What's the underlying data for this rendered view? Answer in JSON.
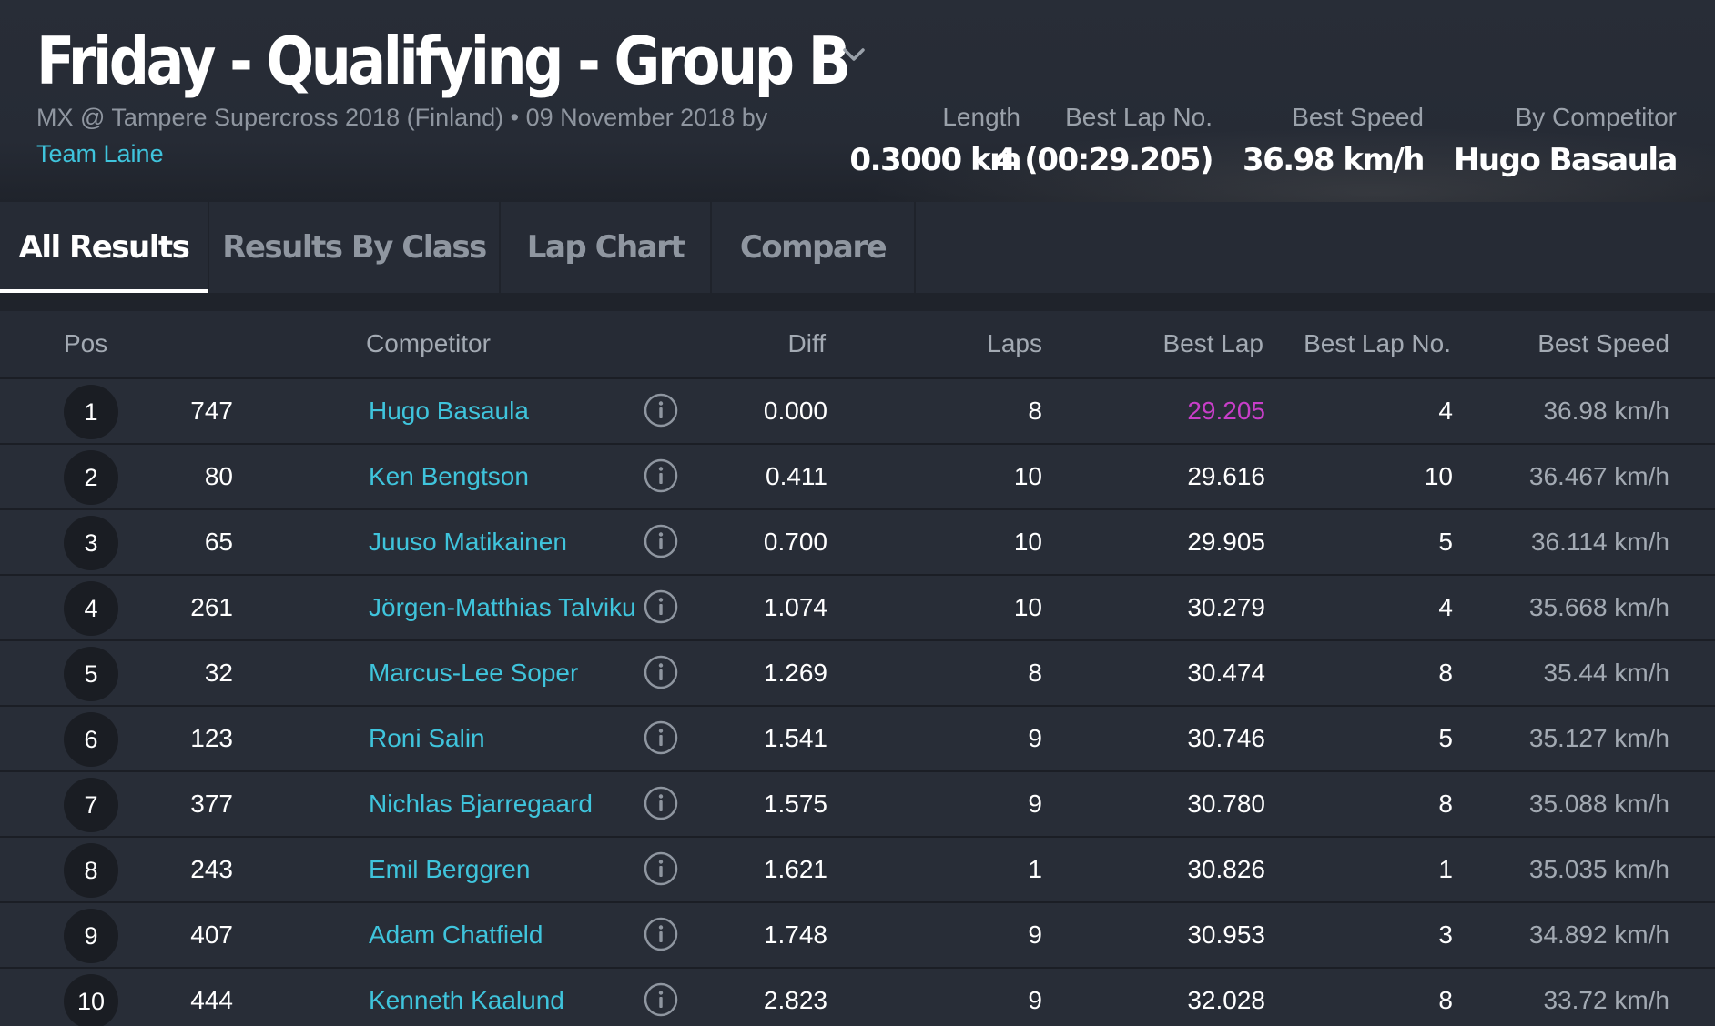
{
  "header": {
    "title": "Friday - Qualifying - Group B",
    "subtitle": "MX @ Tampere Supercross 2018 (Finland) • 09 November 2018 by",
    "organizer": "Team Laine",
    "stats": [
      {
        "label": "Length",
        "value": "0.3000 km"
      },
      {
        "label": "Best Lap No.",
        "value": "4 (00:29.205)"
      },
      {
        "label": "Best Speed",
        "value": "36.98 km/h"
      },
      {
        "label": "By Competitor",
        "value": "Hugo Basaula"
      }
    ]
  },
  "tabs": [
    {
      "label": "All Results",
      "active": true
    },
    {
      "label": "Results By Class",
      "active": false
    },
    {
      "label": "Lap Chart",
      "active": false
    },
    {
      "label": "Compare",
      "active": false
    }
  ],
  "table": {
    "columns": {
      "pos": "Pos",
      "competitor": "Competitor",
      "diff": "Diff",
      "laps": "Laps",
      "best_lap": "Best Lap",
      "best_lap_no": "Best Lap No.",
      "best_speed": "Best Speed"
    },
    "rows": [
      {
        "pos": "1",
        "number": "747",
        "name": "Hugo Basaula",
        "diff": "0.000",
        "laps": "8",
        "best_lap": "29.205",
        "best_lap_no": "4",
        "best_speed": "36.98 km/h"
      },
      {
        "pos": "2",
        "number": "80",
        "name": "Ken Bengtson",
        "diff": "0.411",
        "laps": "10",
        "best_lap": "29.616",
        "best_lap_no": "10",
        "best_speed": "36.467 km/h"
      },
      {
        "pos": "3",
        "number": "65",
        "name": "Juuso Matikainen",
        "diff": "0.700",
        "laps": "10",
        "best_lap": "29.905",
        "best_lap_no": "5",
        "best_speed": "36.114 km/h"
      },
      {
        "pos": "4",
        "number": "261",
        "name": "Jörgen-Matthias Talviku",
        "diff": "1.074",
        "laps": "10",
        "best_lap": "30.279",
        "best_lap_no": "4",
        "best_speed": "35.668 km/h"
      },
      {
        "pos": "5",
        "number": "32",
        "name": "Marcus-Lee Soper",
        "diff": "1.269",
        "laps": "8",
        "best_lap": "30.474",
        "best_lap_no": "8",
        "best_speed": "35.44 km/h"
      },
      {
        "pos": "6",
        "number": "123",
        "name": "Roni Salin",
        "diff": "1.541",
        "laps": "9",
        "best_lap": "30.746",
        "best_lap_no": "5",
        "best_speed": "35.127 km/h"
      },
      {
        "pos": "7",
        "number": "377",
        "name": "Nichlas Bjarregaard",
        "diff": "1.575",
        "laps": "9",
        "best_lap": "30.780",
        "best_lap_no": "8",
        "best_speed": "35.088 km/h"
      },
      {
        "pos": "8",
        "number": "243",
        "name": "Emil Berggren",
        "diff": "1.621",
        "laps": "1",
        "best_lap": "30.826",
        "best_lap_no": "1",
        "best_speed": "35.035 km/h"
      },
      {
        "pos": "9",
        "number": "407",
        "name": "Adam Chatfield",
        "diff": "1.748",
        "laps": "9",
        "best_lap": "30.953",
        "best_lap_no": "3",
        "best_speed": "34.892 km/h"
      },
      {
        "pos": "10",
        "number": "444",
        "name": "Kenneth Kaalund",
        "diff": "2.823",
        "laps": "9",
        "best_lap": "32.028",
        "best_lap_no": "8",
        "best_speed": "33.72 km/h"
      }
    ]
  },
  "colors": {
    "accent_link": "#3fc4dc",
    "best_lap_highlight": "#c83ec8",
    "background": "#262b35"
  },
  "icons": {
    "title_dropdown": "chevron-down-icon",
    "row_info": "info-icon"
  }
}
